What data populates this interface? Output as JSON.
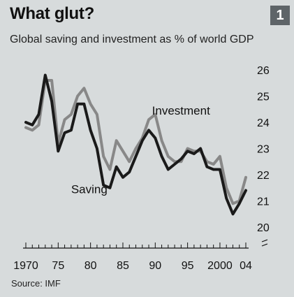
{
  "header": {
    "title": "What glut?",
    "subtitle": "Global saving and investment as % of world GDP",
    "chart_number": "1"
  },
  "source": "Source: IMF",
  "colors": {
    "saving": "#1a1a1a",
    "investment": "#888888",
    "axis": "#111111",
    "background": "#d7dbdc"
  },
  "chart_data": {
    "type": "line",
    "title": "What glut?",
    "subtitle": "Global saving and investment as % of world GDP",
    "xlabel": "",
    "ylabel": "",
    "xlim": [
      1970,
      2004
    ],
    "ylim": [
      20,
      26
    ],
    "axis_break": true,
    "grid": false,
    "y_axis_position": "right",
    "x_ticks": [
      {
        "value": 1970,
        "label": "1970"
      },
      {
        "value": 1975,
        "label": "75"
      },
      {
        "value": 1980,
        "label": "80"
      },
      {
        "value": 1985,
        "label": "85"
      },
      {
        "value": 1990,
        "label": "90"
      },
      {
        "value": 1995,
        "label": "95"
      },
      {
        "value": 2000,
        "label": "2000"
      },
      {
        "value": 2004,
        "label": "04"
      }
    ],
    "y_ticks": [
      {
        "value": 20,
        "label": "20"
      },
      {
        "value": 21,
        "label": "21"
      },
      {
        "value": 22,
        "label": "22"
      },
      {
        "value": 23,
        "label": "23"
      },
      {
        "value": 24,
        "label": "24"
      },
      {
        "value": 25,
        "label": "25"
      },
      {
        "value": 26,
        "label": "26"
      }
    ],
    "x": [
      1970,
      1971,
      1972,
      1973,
      1974,
      1975,
      1976,
      1977,
      1978,
      1979,
      1980,
      1981,
      1982,
      1983,
      1984,
      1985,
      1986,
      1987,
      1988,
      1989,
      1990,
      1991,
      1992,
      1993,
      1994,
      1995,
      1996,
      1997,
      1998,
      1999,
      2000,
      2001,
      2002,
      2003,
      2004
    ],
    "series": [
      {
        "name": "Saving",
        "label_anchor": {
          "x": 1977,
          "y": 21.3
        },
        "values": [
          24.0,
          23.9,
          24.3,
          25.8,
          24.8,
          22.9,
          23.6,
          23.7,
          24.7,
          24.7,
          23.7,
          23.0,
          21.6,
          21.5,
          22.3,
          21.9,
          22.1,
          22.7,
          23.3,
          23.7,
          23.4,
          22.7,
          22.2,
          22.4,
          22.6,
          22.9,
          22.8,
          23.0,
          22.3,
          22.2,
          22.2,
          21.1,
          20.5,
          20.9,
          21.4
        ]
      },
      {
        "name": "Investment",
        "label_anchor": {
          "x": 1989.5,
          "y": 24.3
        },
        "values": [
          23.8,
          23.7,
          23.9,
          25.6,
          25.6,
          23.2,
          24.1,
          24.3,
          25.0,
          25.3,
          24.7,
          24.3,
          22.7,
          22.2,
          23.3,
          22.9,
          22.5,
          23.0,
          23.4,
          24.1,
          24.3,
          23.3,
          22.7,
          22.5,
          22.5,
          23.0,
          22.9,
          22.9,
          22.5,
          22.4,
          22.7,
          21.5,
          20.9,
          21.0,
          21.9
        ]
      }
    ]
  }
}
